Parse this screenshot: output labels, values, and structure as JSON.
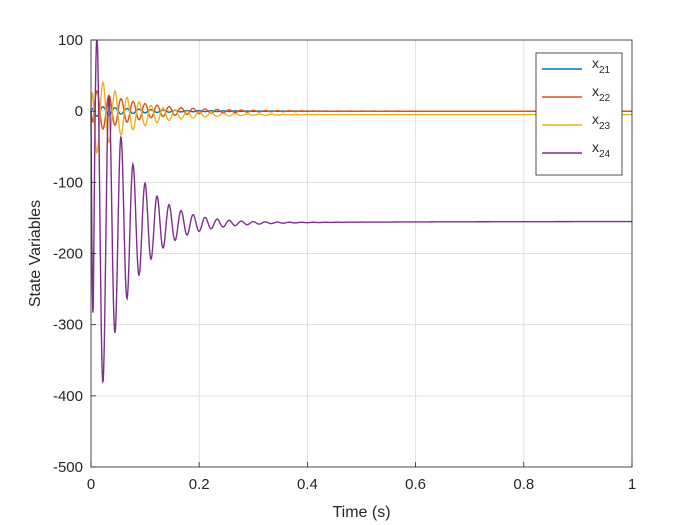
{
  "chart_data": {
    "type": "line",
    "title": "",
    "xlabel": "Time (s)",
    "ylabel": "State Variables",
    "xlim": [
      0,
      1
    ],
    "ylim": [
      -500,
      100
    ],
    "xticks": [
      0,
      0.2,
      0.4,
      0.6,
      0.8,
      1
    ],
    "xtick_labels": [
      "0",
      "0.2",
      "0.4",
      "0.6",
      "0.8",
      "1"
    ],
    "yticks": [
      100,
      0,
      -100,
      -200,
      -300,
      -400,
      -500
    ],
    "ytick_labels": [
      "100",
      "0",
      "-100",
      "-200",
      "-300",
      "-400",
      "-500"
    ],
    "grid": true,
    "legend_position": "top-right",
    "series": [
      {
        "name": "x21",
        "label_main": "x",
        "label_sub": "21",
        "color": "#0072BD",
        "model": {
          "final": 0,
          "amp": 8,
          "freq": 45,
          "decay": 12,
          "step": 0,
          "phase": 0
        }
      },
      {
        "name": "x22",
        "label_main": "x",
        "label_sub": "22",
        "color": "#D95319",
        "model": {
          "final": 0,
          "amp": 32,
          "freq": 45,
          "decay": 11,
          "step": 0,
          "phase": 3.14159
        }
      },
      {
        "name": "x23",
        "label_main": "x",
        "label_sub": "23",
        "color": "#EDB120",
        "model": {
          "final": -5,
          "amp": 62,
          "freq": 45,
          "decay": 14,
          "step": 0,
          "phase": 0
        }
      },
      {
        "name": "x24",
        "label_main": "x",
        "label_sub": "24",
        "color": "#7E2F8E",
        "model": {
          "final": -155,
          "amp": 320,
          "freq": 45,
          "decay": 17,
          "step": 0.2,
          "phase": 3.14159,
          "drift_start": -162,
          "drift_rate": 4
        }
      }
    ]
  }
}
